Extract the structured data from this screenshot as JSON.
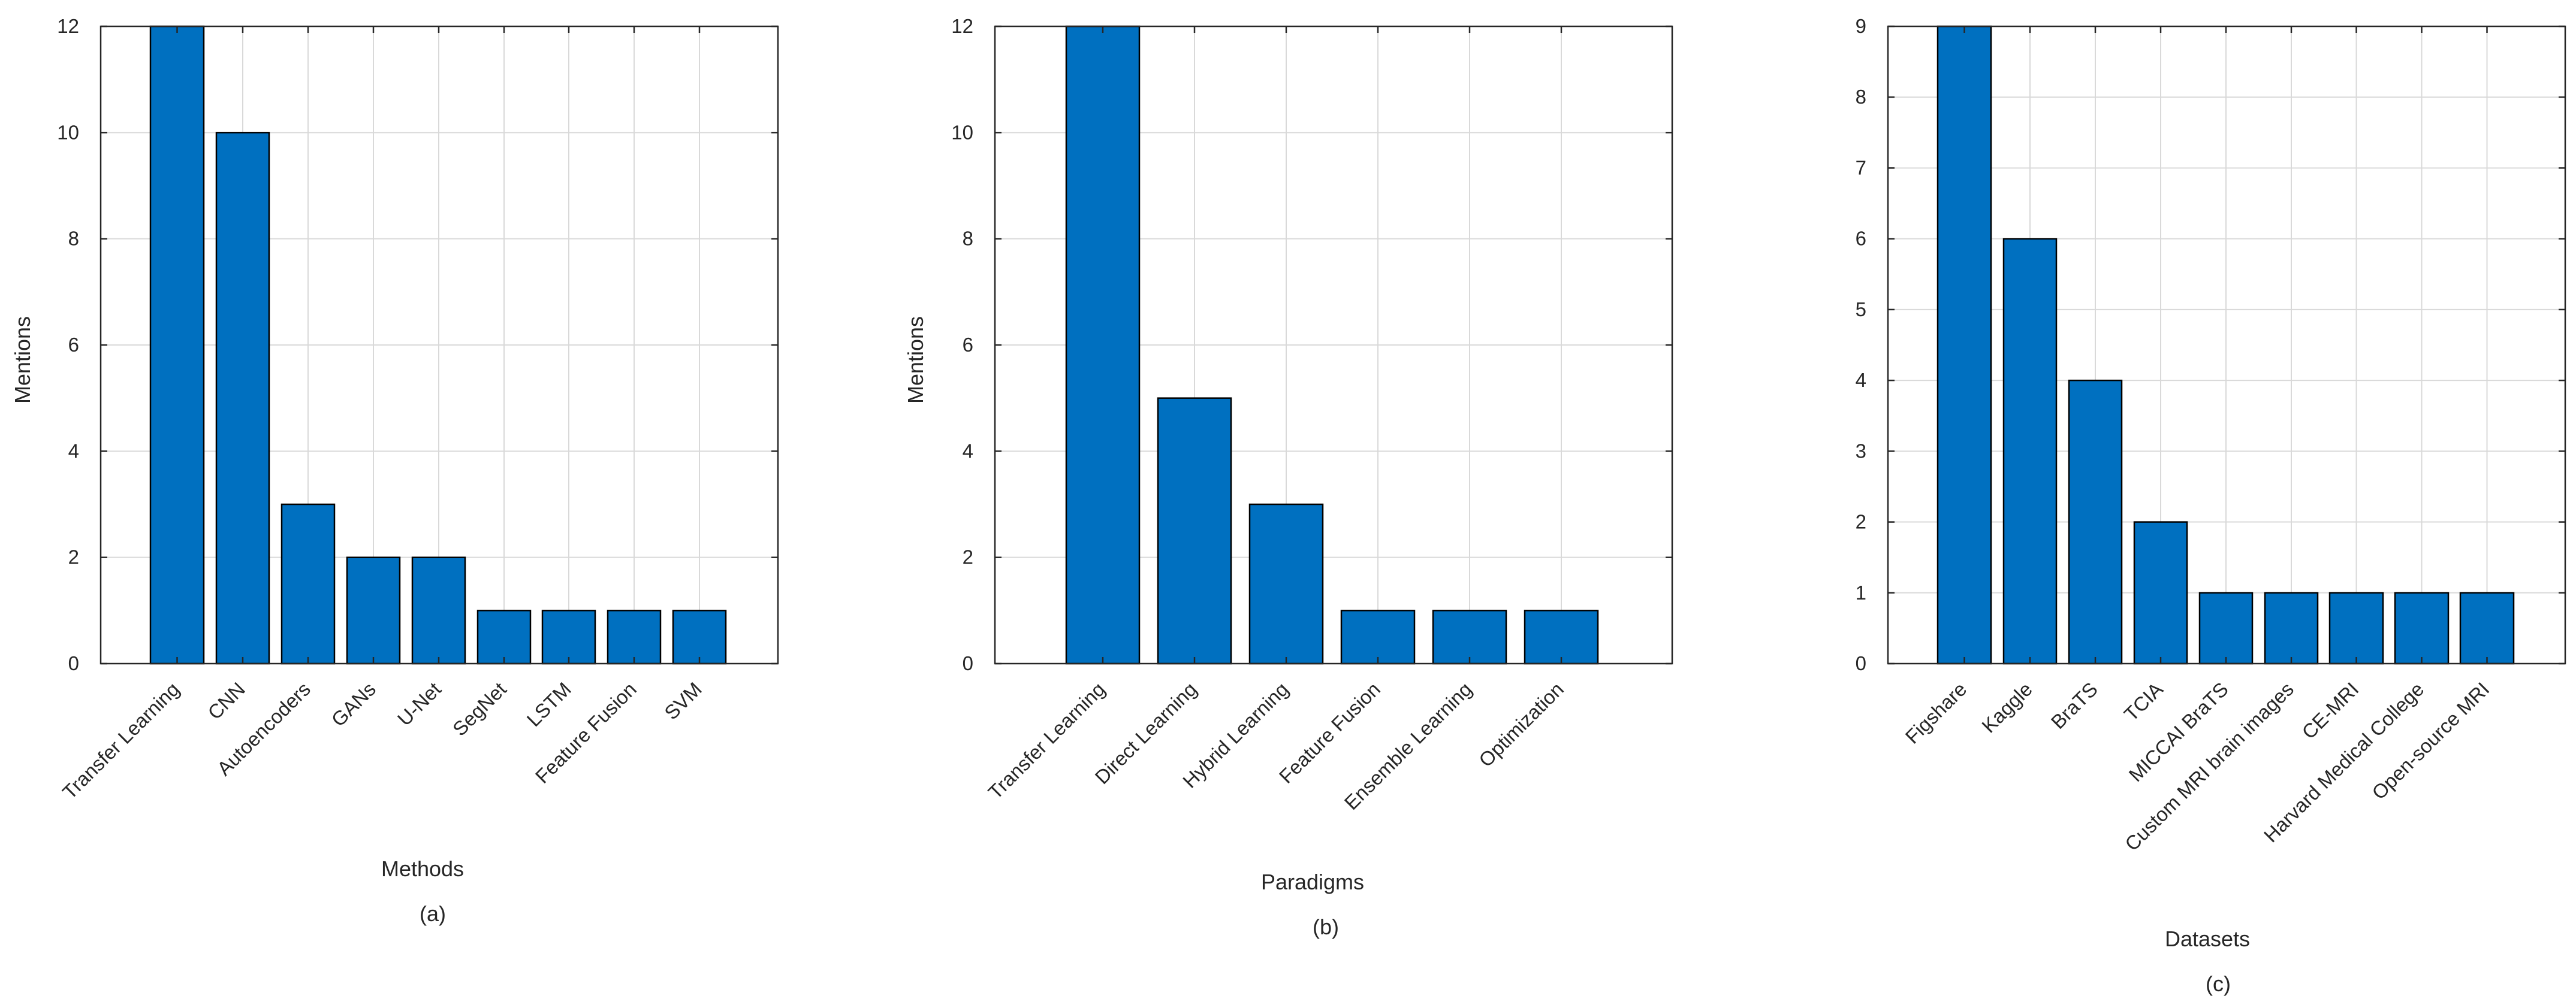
{
  "chart_data": [
    {
      "type": "bar",
      "panel_label": "(a)",
      "xlabel": "Methods",
      "ylabel": "Mentions",
      "ylim": [
        0,
        12
      ],
      "yticks": [
        0,
        2,
        4,
        6,
        8,
        10,
        12
      ],
      "grid": true,
      "bar_color": "#0070C0",
      "categories": [
        "Transfer Learning",
        "CNN",
        "Autoencoders",
        "GANs",
        "U-Net",
        "SegNet",
        "LSTM",
        "Feature Fusion",
        "SVM"
      ],
      "values": [
        12,
        10,
        3,
        2,
        2,
        1,
        1,
        1,
        1
      ]
    },
    {
      "type": "bar",
      "panel_label": "(b)",
      "xlabel": "Paradigms",
      "ylabel": "Mentions",
      "ylim": [
        0,
        12
      ],
      "yticks": [
        0,
        2,
        4,
        6,
        8,
        10,
        12
      ],
      "grid": true,
      "bar_color": "#0070C0",
      "categories": [
        "Transfer Learning",
        "Direct Learning",
        "Hybrid Learning",
        "Feature Fusion",
        "Ensemble Learning",
        "Optimization"
      ],
      "values": [
        12,
        5,
        3,
        1,
        1,
        1
      ]
    },
    {
      "type": "bar",
      "panel_label": "(c)",
      "xlabel": "Datasets",
      "ylabel": "",
      "ylim": [
        0,
        9
      ],
      "yticks": [
        0,
        1,
        2,
        3,
        4,
        5,
        6,
        7,
        8,
        9
      ],
      "grid": true,
      "bar_color": "#0070C0",
      "categories": [
        "Figshare",
        "Kaggle",
        "BraTS",
        "TCIA",
        "MICCAI BraTS",
        "Custom MRI brain images",
        "CE-MRI",
        "Harvard Medical College",
        "Open-source MRI"
      ],
      "values": [
        9,
        6,
        4,
        2,
        1,
        1,
        1,
        1,
        1
      ]
    }
  ]
}
